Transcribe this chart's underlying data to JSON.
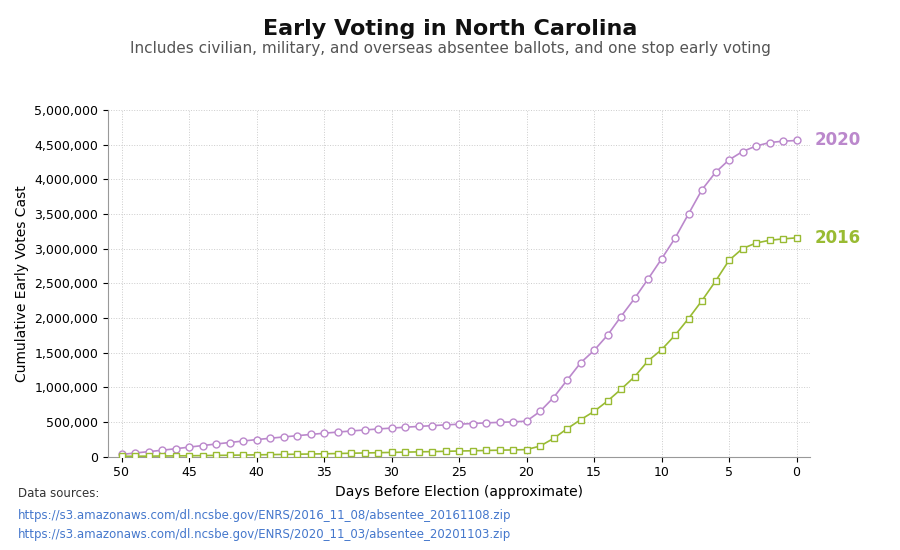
{
  "title": "Early Voting in North Carolina",
  "subtitle": "Includes civilian, military, and overseas absentee ballots, and one stop early voting",
  "xlabel": "Days Before Election (approximate)",
  "ylabel": "Cumulative Early Votes Cast",
  "background_color": "#ffffff",
  "grid_color": "#cccccc",
  "title_fontsize": 16,
  "subtitle_fontsize": 11,
  "axis_label_fontsize": 10,
  "tick_fontsize": 9,
  "datasource_text": "Data sources:",
  "datasource_url1": "https://s3.amazonaws.com/dl.ncsbe.gov/ENRS/2016_11_08/absentee_20161108.zip",
  "datasource_url2": "https://s3.amazonaws.com/dl.ncsbe.gov/ENRS/2020_11_03/absentee_20201103.zip",
  "color_2020": "#bb88cc",
  "color_2016": "#99bb33",
  "label_2020": "2020",
  "label_2016": "2016",
  "ylim": [
    0,
    5000000
  ],
  "yticks": [
    0,
    500000,
    1000000,
    1500000,
    2000000,
    2500000,
    3000000,
    3500000,
    4000000,
    4500000,
    5000000
  ],
  "xticks": [
    50,
    45,
    40,
    35,
    30,
    25,
    20,
    15,
    10,
    5,
    0
  ],
  "days_2020": [
    50,
    49,
    48,
    47,
    46,
    45,
    44,
    43,
    42,
    41,
    40,
    39,
    38,
    37,
    36,
    35,
    34,
    33,
    32,
    31,
    30,
    29,
    28,
    27,
    26,
    25,
    24,
    23,
    22,
    21,
    20,
    19,
    18,
    17,
    16,
    15,
    14,
    13,
    12,
    11,
    10,
    9,
    8,
    7,
    6,
    5,
    4,
    3,
    2,
    1,
    0
  ],
  "votes_2020": [
    30000,
    50000,
    70000,
    90000,
    112000,
    135000,
    158000,
    180000,
    202000,
    223000,
    244000,
    263000,
    282000,
    300000,
    318000,
    336000,
    352000,
    368000,
    383000,
    397000,
    410000,
    422000,
    434000,
    445000,
    456000,
    466000,
    476000,
    485000,
    493000,
    500000,
    510000,
    650000,
    850000,
    1100000,
    1350000,
    1530000,
    1750000,
    2020000,
    2280000,
    2560000,
    2850000,
    3150000,
    3500000,
    3850000,
    4100000,
    4280000,
    4400000,
    4480000,
    4530000,
    4550000,
    4560000
  ],
  "days_2016": [
    50,
    49,
    48,
    47,
    46,
    45,
    44,
    43,
    42,
    41,
    40,
    39,
    38,
    37,
    36,
    35,
    34,
    33,
    32,
    31,
    30,
    29,
    28,
    27,
    26,
    25,
    24,
    23,
    22,
    21,
    20,
    19,
    18,
    17,
    16,
    15,
    14,
    13,
    12,
    11,
    10,
    9,
    8,
    7,
    6,
    5,
    4,
    3,
    2,
    1,
    0
  ],
  "votes_2016": [
    3000,
    4000,
    5000,
    7000,
    9000,
    11000,
    13000,
    16000,
    18000,
    21000,
    24000,
    27000,
    30000,
    33000,
    36000,
    39000,
    43000,
    47000,
    51000,
    55000,
    59000,
    63000,
    67000,
    71000,
    75000,
    79000,
    83000,
    87000,
    91000,
    95000,
    100000,
    150000,
    260000,
    400000,
    530000,
    650000,
    800000,
    970000,
    1150000,
    1380000,
    1540000,
    1750000,
    1990000,
    2250000,
    2530000,
    2830000,
    3000000,
    3080000,
    3120000,
    3140000,
    3155000
  ]
}
